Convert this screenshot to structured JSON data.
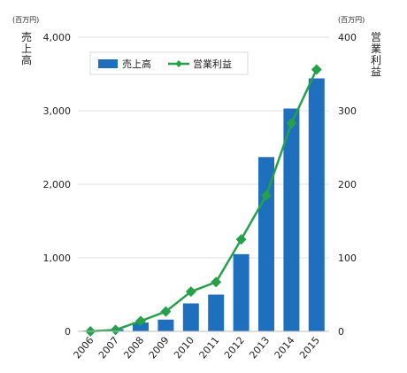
{
  "chart_data": {
    "type": "bar",
    "categories": [
      "2006",
      "2007",
      "2008",
      "2009",
      "2010",
      "2011",
      "2012",
      "2013",
      "2014",
      "2015"
    ],
    "series": [
      {
        "name": "売上高",
        "kind": "bar",
        "axis": "left",
        "color": "#1f6fbf",
        "values": [
          10,
          30,
          120,
          160,
          380,
          500,
          1050,
          2370,
          3030,
          3440
        ]
      },
      {
        "name": "営業利益",
        "kind": "line",
        "axis": "right",
        "color": "#27a04b",
        "marker": "diamond",
        "values": [
          0,
          2,
          14,
          27,
          54,
          67,
          125,
          185,
          283,
          356
        ]
      }
    ],
    "y_left": {
      "label": "売上高",
      "unit": "(百万円)",
      "ylim": [
        0,
        4000
      ],
      "ticks": [
        "0",
        "1,000",
        "2,000",
        "3,000",
        "4,000"
      ]
    },
    "y_right": {
      "label": "営業利益",
      "unit": "(百万円)",
      "ylim": [
        0,
        400
      ],
      "ticks": [
        "0",
        "100",
        "200",
        "300",
        "400"
      ]
    },
    "grid": true,
    "legend": "top-left"
  }
}
